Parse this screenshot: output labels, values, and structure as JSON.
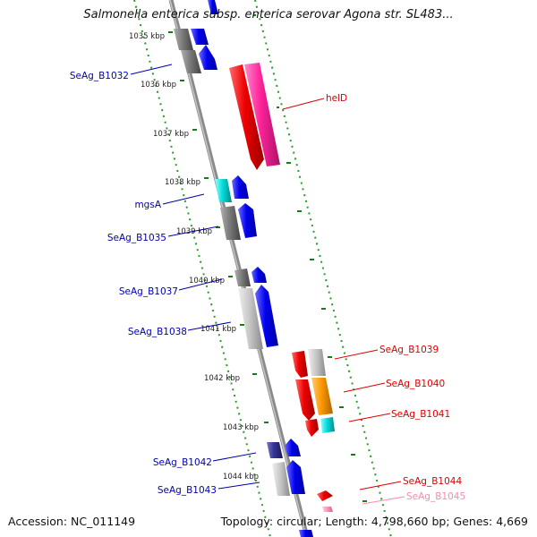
{
  "title": "Salmonella enterica subsp. enterica serovar Agona str. SL483...",
  "accession_text": "Accession: NC_011149",
  "summary_text": "Topology: circular; Length: 4,798,660 bp; Genes: 4,669",
  "ticks": [
    "1035 kbp",
    "1036 kbp",
    "1037 kbp",
    "1038 kbp",
    "1039 kbp",
    "1040 kbp",
    "1041 kbp",
    "1042 kbp",
    "1043 kbp",
    "1044 kbp"
  ],
  "left_labels": [
    "SeAg_B1032",
    "mgsA",
    "SeAg_B1035",
    "SeAg_B1037",
    "SeAg_B1038",
    "SeAg_B1042",
    "SeAg_B1043"
  ],
  "right_labels": [
    "helD",
    "SeAg_B1039",
    "SeAg_B1040",
    "SeAg_B1041",
    "SeAg_B1044",
    "SeAg_B1045"
  ],
  "colors": {
    "backbone": "#8a8a8a",
    "dots": "#2a9a2a",
    "dash": "#1a7a1a",
    "blue": "#0000ee",
    "red": "#ee0000",
    "magenta": "#ff2299",
    "orange": "#ff9900",
    "cyan": "#00dddd",
    "navy": "#333399",
    "gray_dark": "#7a7a7a",
    "gray_light": "#c8c8c8",
    "pink": "#ff99bb",
    "label_blue": "#0000aa",
    "label_red": "#dd0000",
    "label_pink": "#ff88aa"
  }
}
